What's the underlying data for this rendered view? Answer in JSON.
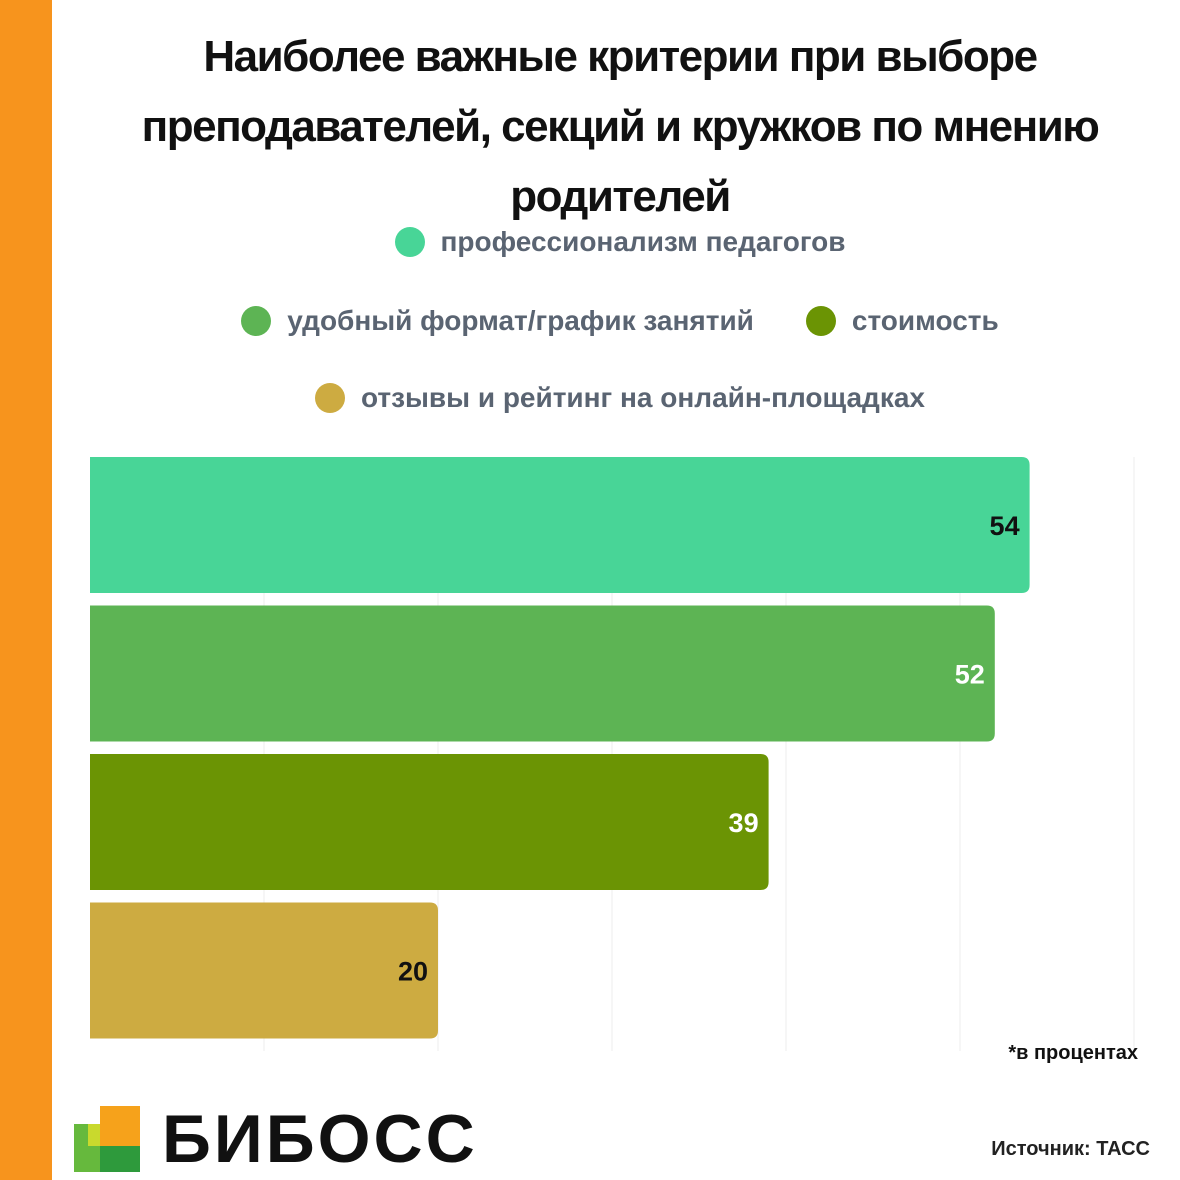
{
  "title_lines": [
    "Наиболее важные критерии при выборе",
    "преподавателей, секций и кружков по мнению",
    "родителей"
  ],
  "note": "*в процентах",
  "source": "Источник: ТАСС",
  "logo": {
    "text": "БИБОСС",
    "icon": "colored-squares-logo-icon"
  },
  "colors": {
    "accent_stripe": "#f7941d"
  },
  "chart_data": {
    "type": "bar",
    "orientation": "horizontal",
    "title": "Наиболее важные критерии при выборе преподавателей, секций и кружков по мнению родителей",
    "categories": [
      "профессионализм педагогов",
      "удобный формат/график занятий",
      "стоимость",
      "отзывы и рейтинг на онлайн-площадках"
    ],
    "values": [
      54,
      52,
      39,
      20
    ],
    "colors": [
      "#48d597",
      "#5db454",
      "#6b9404",
      "#cdab41"
    ],
    "label_colors": [
      "#111111",
      "#ffffff",
      "#ffffff",
      "#111111"
    ],
    "unit": "в процентах",
    "xlim": [
      0,
      60
    ],
    "grid": true,
    "legend_position": "top"
  }
}
